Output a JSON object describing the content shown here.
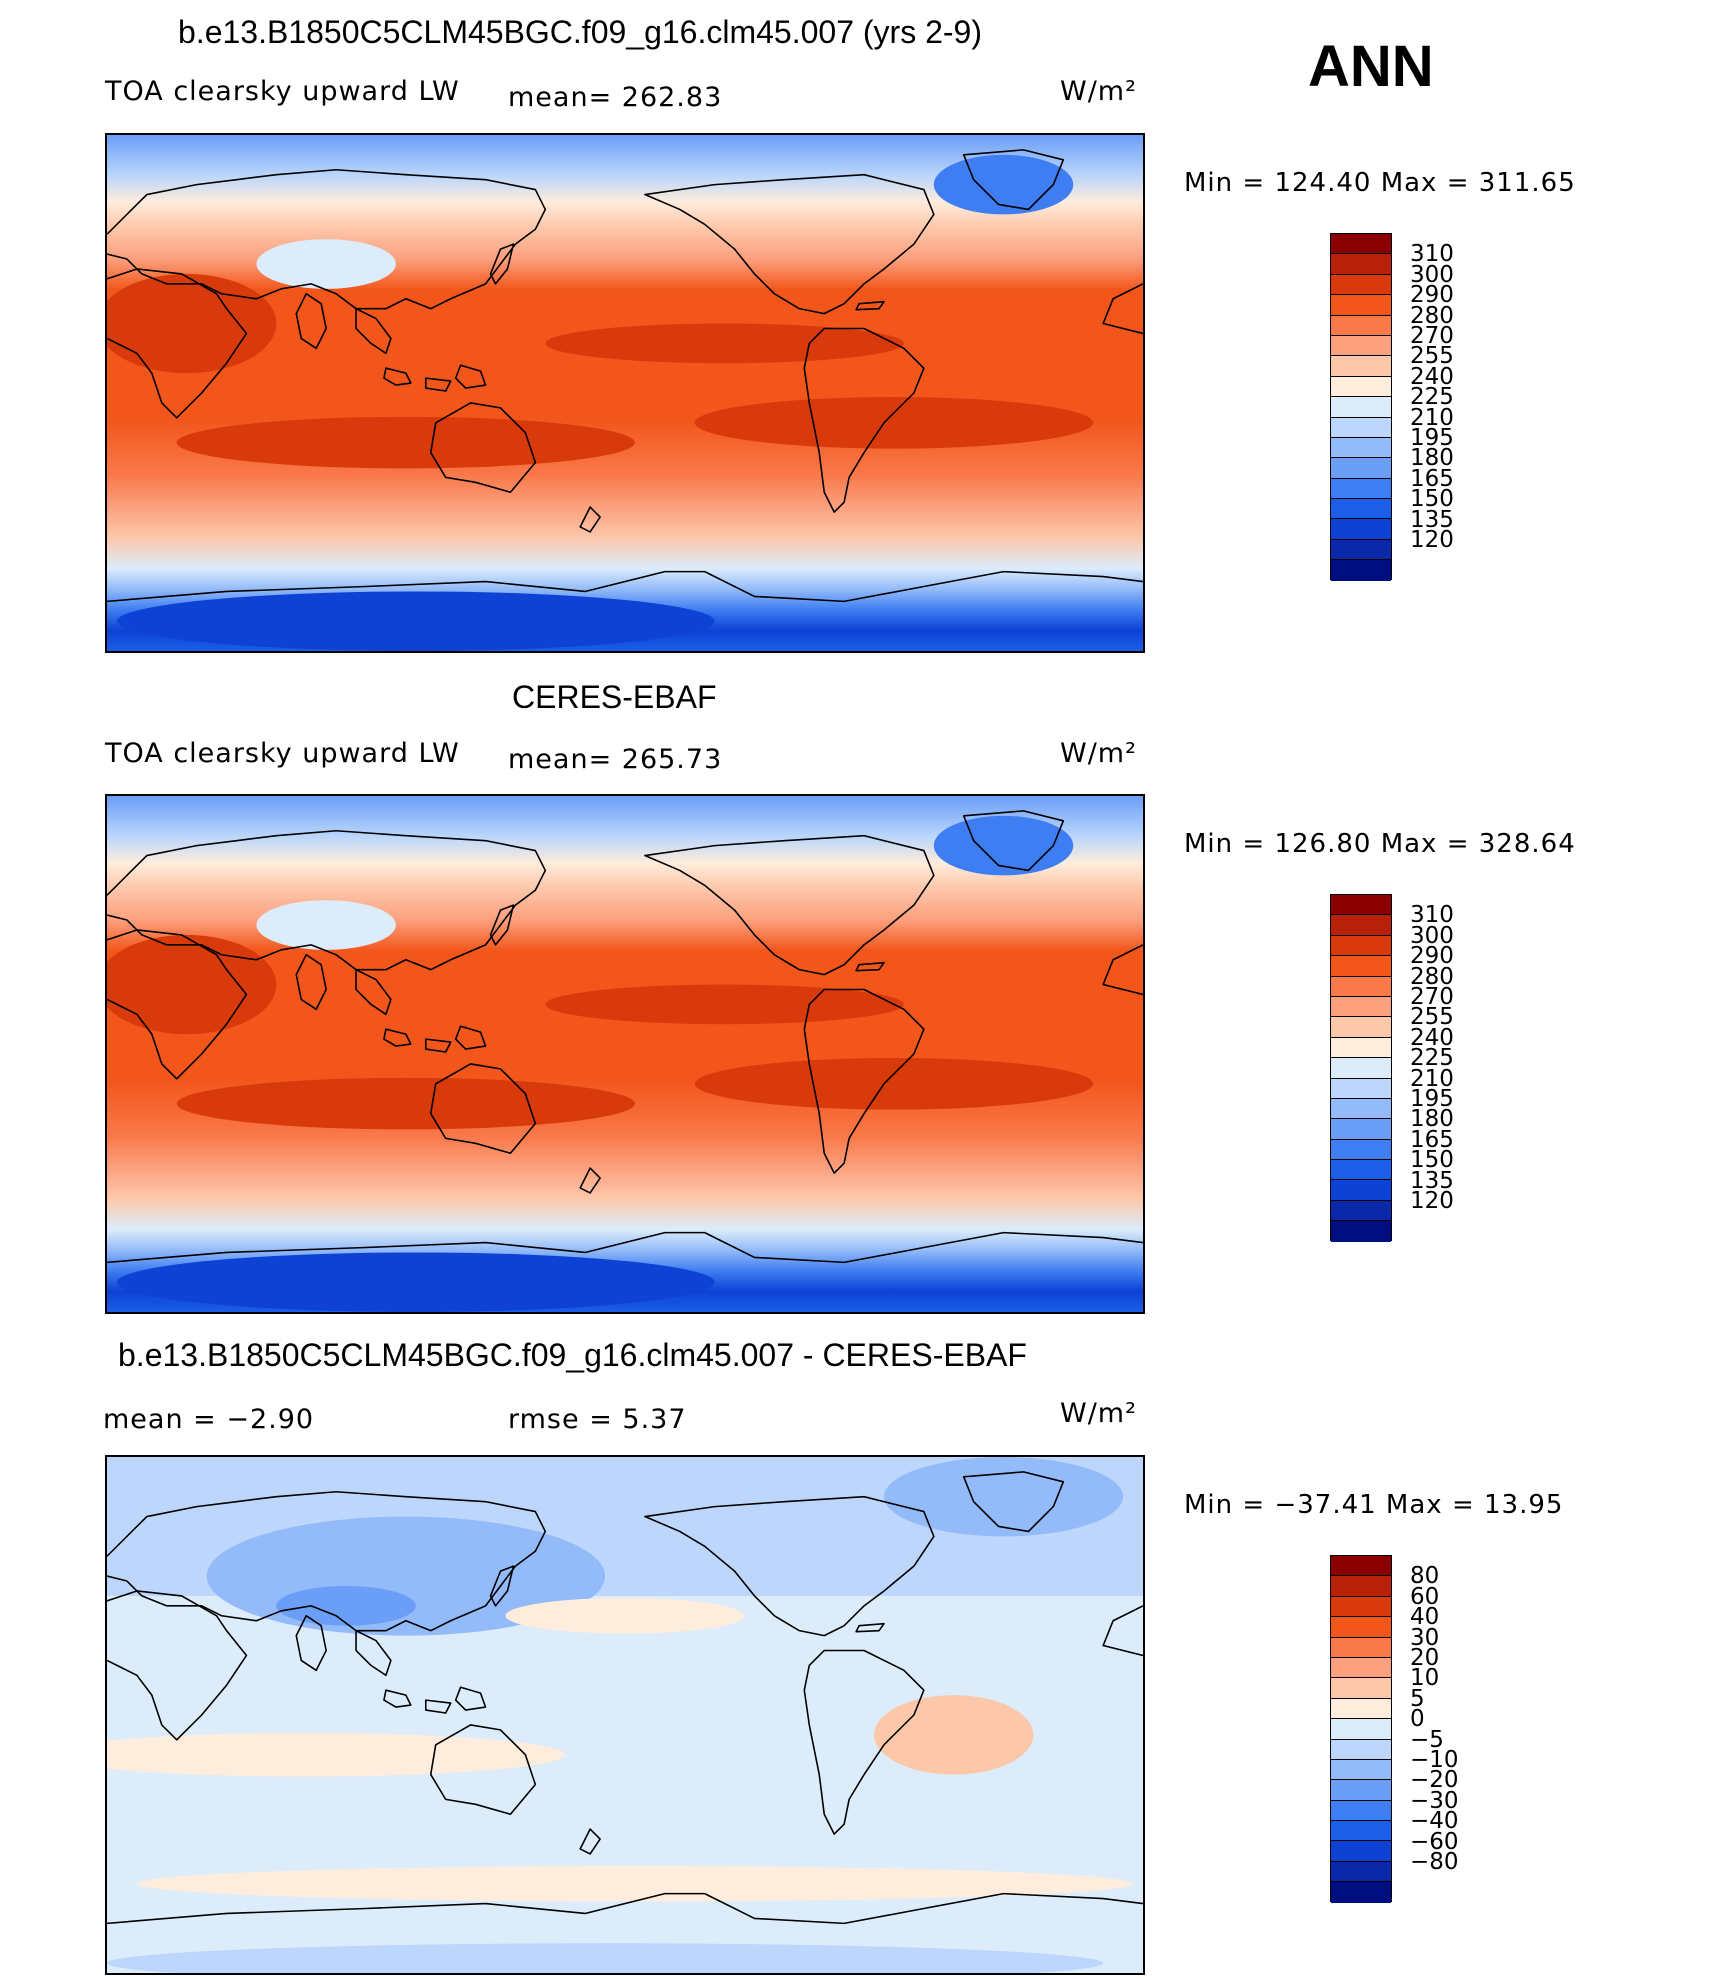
{
  "season": "ANN",
  "panels": [
    {
      "title": "b.e13.B1850C5CLM45BGC.f09_g16.clm45.007 (yrs 2-9)",
      "var_label": "TOA clearsky upward LW",
      "stat_left": "",
      "stat_mid": "mean=  262.83",
      "units": "W/m²",
      "minmax": "Min  =  124.40  Max  =  311.65",
      "kind": "model"
    },
    {
      "title": "CERES-EBAF",
      "var_label": "TOA clearsky upward LW",
      "stat_left": "",
      "stat_mid": "mean=  265.73",
      "units": "W/m²",
      "minmax": "Min  =  126.80  Max  =  328.64",
      "kind": "obs"
    },
    {
      "title": "b.e13.B1850C5CLM45BGC.f09_g16.clm45.007 - CERES-EBAF",
      "var_label": "",
      "stat_left": "mean  =    −2.90",
      "stat_mid": "rmse  =     5.37",
      "units": "W/m²",
      "minmax": "Min  =  −37.41  Max  =    13.95",
      "kind": "diff"
    }
  ],
  "colorbars": {
    "abs": {
      "labels": [
        "310",
        "300",
        "290",
        "280",
        "270",
        "255",
        "240",
        "225",
        "210",
        "195",
        "180",
        "165",
        "150",
        "135",
        "120"
      ],
      "colors": [
        "#8a0000",
        "#b8200a",
        "#d93a0b",
        "#f2561b",
        "#f9794a",
        "#fca07e",
        "#fdc7aa",
        "#feecdc",
        "#dcecfb",
        "#bcd7fb",
        "#93bbf9",
        "#6b9ef7",
        "#3f7ef2",
        "#1c5ee8",
        "#0d42d4",
        "#0a28a8",
        "#000f80"
      ]
    },
    "diff": {
      "labels": [
        "80",
        "60",
        "40",
        "30",
        "20",
        "10",
        "5",
        "0",
        "−5",
        "−10",
        "−20",
        "−30",
        "−40",
        "−60",
        "−80"
      ],
      "colors": [
        "#8a0000",
        "#b8200a",
        "#d93a0b",
        "#f2561b",
        "#f9794a",
        "#fca07e",
        "#fdc7aa",
        "#feecdc",
        "#dcecfb",
        "#bcd7fb",
        "#93bbf9",
        "#6b9ef7",
        "#3f7ef2",
        "#1c5ee8",
        "#0d42d4",
        "#0a28a8",
        "#000f80"
      ]
    }
  }
}
